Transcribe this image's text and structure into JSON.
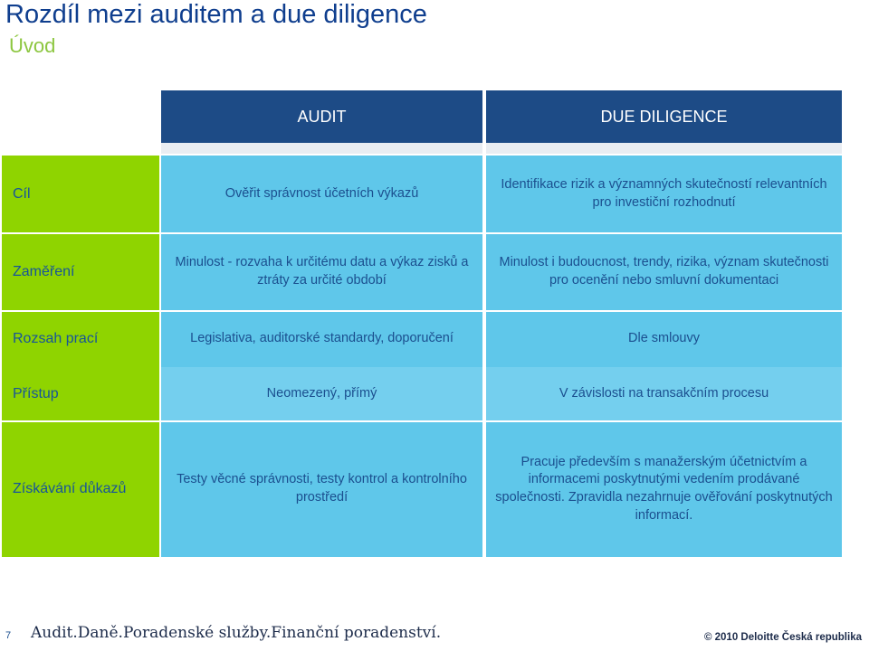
{
  "slide": {
    "title": "Rozdíl mezi auditem a due diligence",
    "subtitle": "Úvod",
    "columns": {
      "audit": "AUDIT",
      "dd": "DUE DILIGENCE"
    },
    "rows": [
      {
        "label": "Cíl",
        "audit": "Ověřit správnost účetních výkazů",
        "dd": "Identifikace rizik a významných skutečností relevantních pro investiční rozhodnutí"
      },
      {
        "label": "Zaměření",
        "audit": "Minulost - rozvaha k určitému datu a výkaz zisků a ztráty za určité období",
        "dd": "Minulost i budoucnost, trendy, rizika, význam skutečnosti pro ocenění nebo smluvní dokumentaci"
      },
      {
        "label": "Rozsah prací",
        "audit": "Legislativa, auditorské standardy, doporučení",
        "dd": "Dle smlouvy"
      },
      {
        "label": "Přístup",
        "audit": "Neomezený, přímý",
        "dd": "V závislosti na transakčním procesu"
      },
      {
        "label": "Získávání důkazů",
        "audit": "Testy věcné správnosti, testy kontrol a kontrolního prostředí",
        "dd": "Pracuje především s manažerským účetnictvím a informacemi poskytnutými vedením prodávané společnosti. Zpravidla nezahrnuje ověřování poskytnutých informací."
      }
    ]
  },
  "footer": {
    "page_number": "7",
    "tagline": "Audit.Daně.Poradenské služby.Finanční poradenství.",
    "copyright": "© 2010 Deloitte Česká republika"
  },
  "colors": {
    "header": "#1d4b86",
    "label_column": "#8fd400",
    "body": "#5fc7ea",
    "title": "#0f3e8e",
    "subtitle": "#8cc63f"
  }
}
